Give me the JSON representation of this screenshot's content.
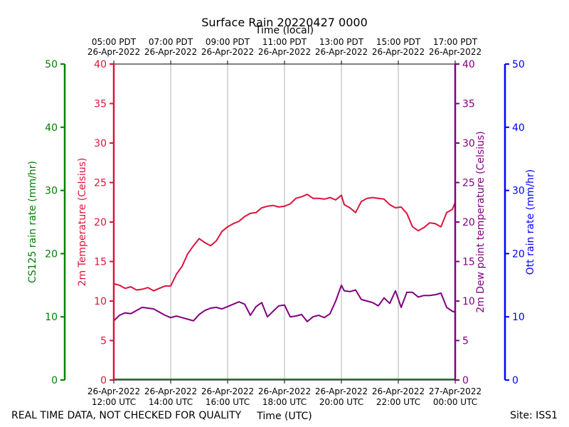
{
  "chart_data": {
    "type": "line",
    "title": "Surface Rain 20220427 0000",
    "top_axis_label": "Time (local)",
    "bottom_axis_label": "Time (UTC)",
    "top_ticks": [
      {
        "time": "05:00 PDT",
        "date": "26-Apr-2022"
      },
      {
        "time": "07:00 PDT",
        "date": "26-Apr-2022"
      },
      {
        "time": "09:00 PDT",
        "date": "26-Apr-2022"
      },
      {
        "time": "11:00 PDT",
        "date": "26-Apr-2022"
      },
      {
        "time": "13:00 PDT",
        "date": "26-Apr-2022"
      },
      {
        "time": "15:00 PDT",
        "date": "26-Apr-2022"
      },
      {
        "time": "17:00 PDT",
        "date": "26-Apr-2022"
      }
    ],
    "bottom_ticks": [
      {
        "date": "26-Apr-2022",
        "time": "12:00 UTC"
      },
      {
        "date": "26-Apr-2022",
        "time": "14:00 UTC"
      },
      {
        "date": "26-Apr-2022",
        "time": "16:00 UTC"
      },
      {
        "date": "26-Apr-2022",
        "time": "18:00 UTC"
      },
      {
        "date": "26-Apr-2022",
        "time": "20:00 UTC"
      },
      {
        "date": "26-Apr-2022",
        "time": "22:00 UTC"
      },
      {
        "date": "27-Apr-2022",
        "time": "00:00 UTC"
      }
    ],
    "xlim_utc_hours": [
      12,
      24
    ],
    "grid": "vertical",
    "axes": [
      {
        "id": "cs125",
        "label": "CS125 rain rate (mm/hr)",
        "color": "#008000",
        "ylim": [
          0,
          50
        ],
        "ticks": [
          0,
          10,
          20,
          30,
          40,
          50
        ],
        "side": "left-outer"
      },
      {
        "id": "temp",
        "label": "2m Temperature (Celsius)",
        "color": "#dc143c",
        "ylim": [
          0,
          40
        ],
        "ticks": [
          0,
          5,
          10,
          15,
          20,
          25,
          30,
          35,
          40
        ],
        "side": "left"
      },
      {
        "id": "dew",
        "label": "2m Dew point temperature (Celsius)",
        "color": "#800080",
        "ylim": [
          0,
          40
        ],
        "ticks": [
          0,
          5,
          10,
          15,
          20,
          25,
          30,
          35,
          40
        ],
        "side": "right"
      },
      {
        "id": "ott",
        "label": "Ott rain rate (mm/hr)",
        "color": "#0000ff",
        "ylim": [
          0,
          50
        ],
        "ticks": [
          0,
          10,
          20,
          30,
          40,
          50
        ],
        "side": "right-outer"
      }
    ],
    "series": [
      {
        "name": "2m Temperature",
        "axis": "temp",
        "color": "#dc143c",
        "x_utc_hours": [
          12.0,
          12.2,
          12.4,
          12.6,
          12.8,
          13.0,
          13.2,
          13.4,
          13.6,
          13.8,
          14.0,
          14.2,
          14.4,
          14.6,
          14.8,
          15.0,
          15.2,
          15.4,
          15.6,
          15.8,
          16.0,
          16.2,
          16.4,
          16.6,
          16.8,
          17.0,
          17.2,
          17.4,
          17.6,
          17.8,
          18.0,
          18.2,
          18.4,
          18.6,
          18.8,
          19.0,
          19.2,
          19.4,
          19.6,
          19.8,
          20.0,
          20.1,
          20.3,
          20.5,
          20.7,
          20.9,
          21.1,
          21.3,
          21.5,
          21.7,
          21.9,
          22.1,
          22.3,
          22.5,
          22.7,
          22.9,
          23.1,
          23.3,
          23.5,
          23.7,
          23.9,
          24.0
        ],
        "y": [
          12.2,
          12.0,
          11.6,
          11.8,
          11.4,
          11.5,
          11.7,
          11.3,
          11.6,
          11.9,
          11.9,
          13.4,
          14.4,
          16.0,
          17.0,
          17.9,
          17.4,
          17.0,
          17.6,
          18.8,
          19.4,
          19.8,
          20.1,
          20.7,
          21.1,
          21.2,
          21.8,
          22.0,
          22.1,
          21.9,
          22.0,
          22.3,
          23.0,
          23.2,
          23.5,
          23.0,
          23.0,
          22.9,
          23.1,
          22.8,
          23.4,
          22.2,
          21.8,
          21.2,
          22.6,
          23.0,
          23.1,
          23.0,
          22.9,
          22.2,
          21.8,
          21.9,
          21.1,
          19.4,
          18.9,
          19.3,
          19.9,
          19.8,
          19.4,
          21.2,
          21.6,
          22.5
        ]
      },
      {
        "name": "2m Dew point temperature",
        "axis": "dew",
        "color": "#800080",
        "x_utc_hours": [
          12.0,
          12.2,
          12.4,
          12.6,
          12.8,
          13.0,
          13.2,
          13.4,
          13.6,
          13.8,
          14.0,
          14.2,
          14.4,
          14.6,
          14.8,
          15.0,
          15.2,
          15.4,
          15.6,
          15.8,
          16.0,
          16.2,
          16.4,
          16.6,
          16.8,
          17.0,
          17.2,
          17.4,
          17.6,
          17.8,
          18.0,
          18.2,
          18.4,
          18.6,
          18.8,
          19.0,
          19.2,
          19.4,
          19.6,
          19.8,
          20.0,
          20.1,
          20.3,
          20.5,
          20.7,
          20.9,
          21.1,
          21.3,
          21.5,
          21.7,
          21.9,
          22.1,
          22.3,
          22.5,
          22.7,
          22.9,
          23.1,
          23.3,
          23.5,
          23.7,
          23.9,
          24.0
        ],
        "y": [
          7.5,
          8.2,
          8.5,
          8.4,
          8.8,
          9.2,
          9.1,
          9.0,
          8.6,
          8.2,
          7.9,
          8.1,
          7.9,
          7.7,
          7.5,
          8.3,
          8.8,
          9.1,
          9.2,
          9.0,
          9.3,
          9.6,
          9.9,
          9.6,
          8.2,
          9.3,
          9.8,
          8.0,
          8.7,
          9.4,
          9.5,
          8.0,
          8.1,
          8.3,
          7.4,
          8.0,
          8.2,
          7.9,
          8.4,
          10.0,
          12.0,
          11.3,
          11.2,
          11.4,
          10.2,
          10.0,
          9.8,
          9.4,
          10.4,
          9.7,
          11.3,
          9.2,
          11.1,
          11.1,
          10.5,
          10.7,
          10.7,
          10.8,
          11.0,
          9.2,
          8.7,
          8.6
        ]
      }
    ]
  },
  "footer": {
    "left": "REAL TIME DATA, NOT CHECKED FOR QUALITY",
    "right": "Site: ISS1"
  },
  "colors": {
    "cs125": "#008000",
    "temp": "#dc143c",
    "dew": "#800080",
    "ott": "#0000ff",
    "grid": "#b0b0b0"
  }
}
